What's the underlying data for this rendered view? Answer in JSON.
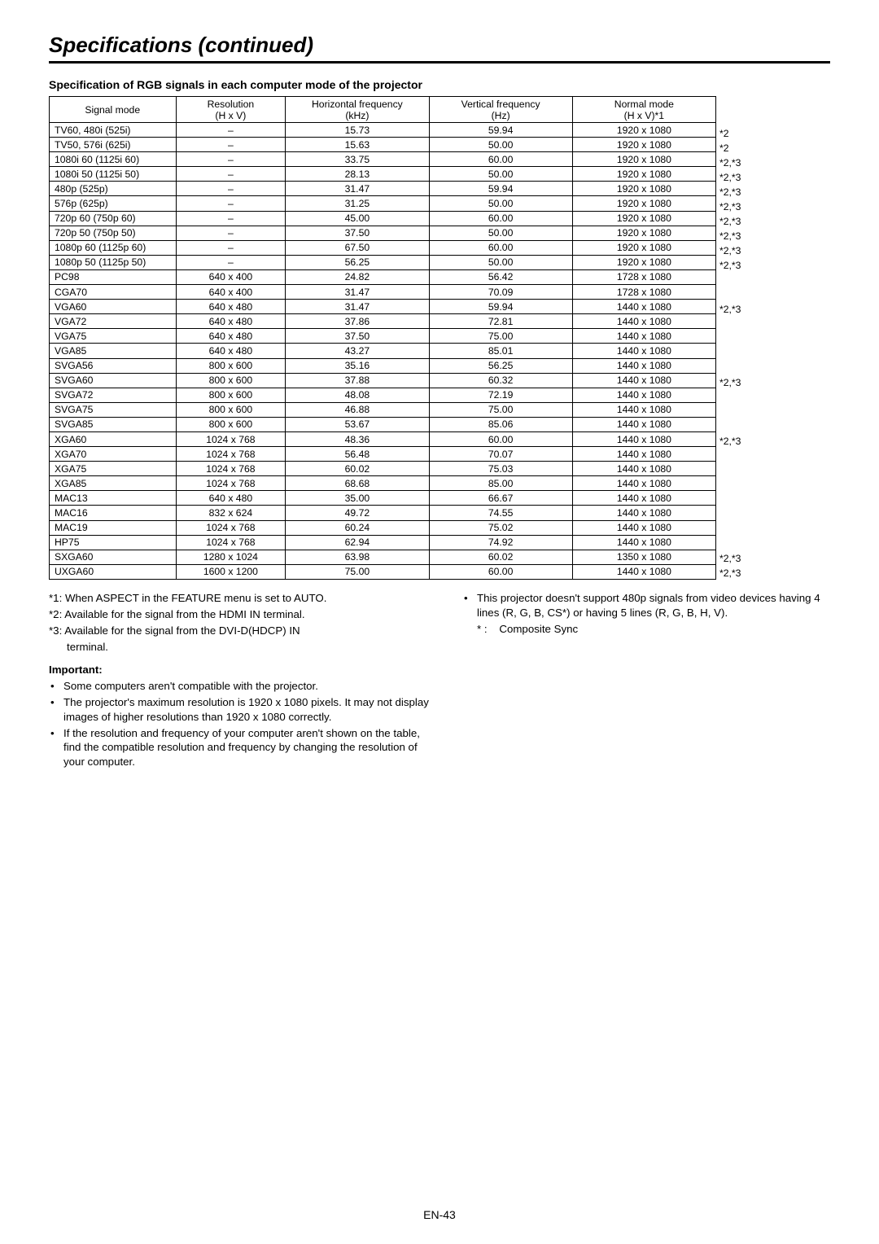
{
  "title": "Specifications (continued)",
  "section_heading": "Specification of RGB signals in each computer mode of the projector",
  "headers": {
    "c1a": "Signal mode",
    "c1b": "",
    "c2a": "Resolution",
    "c2b": "(H x V)",
    "c3a": "Horizontal frequency",
    "c3b": "(kHz)",
    "c4a": "Vertical frequency",
    "c4b": "(Hz)",
    "c5a": "Normal mode",
    "c5b": "(H x V)*1"
  },
  "rows": [
    {
      "mode": "TV60, 480i (525i)",
      "res": "–",
      "hf": "15.73",
      "vf": "59.94",
      "normal": "1920 x 1080",
      "note": "*2"
    },
    {
      "mode": "TV50, 576i (625i)",
      "res": "–",
      "hf": "15.63",
      "vf": "50.00",
      "normal": "1920 x 1080",
      "note": "*2"
    },
    {
      "mode": "1080i 60 (1125i 60)",
      "res": "–",
      "hf": "33.75",
      "vf": "60.00",
      "normal": "1920 x 1080",
      "note": "*2,*3"
    },
    {
      "mode": "1080i 50 (1125i 50)",
      "res": "–",
      "hf": "28.13",
      "vf": "50.00",
      "normal": "1920 x 1080",
      "note": "*2,*3"
    },
    {
      "mode": "480p (525p)",
      "res": "–",
      "hf": "31.47",
      "vf": "59.94",
      "normal": "1920 x 1080",
      "note": "*2,*3"
    },
    {
      "mode": "576p (625p)",
      "res": "–",
      "hf": "31.25",
      "vf": "50.00",
      "normal": "1920 x 1080",
      "note": "*2,*3"
    },
    {
      "mode": "720p 60 (750p 60)",
      "res": "–",
      "hf": "45.00",
      "vf": "60.00",
      "normal": "1920 x 1080",
      "note": "*2,*3"
    },
    {
      "mode": "720p 50 (750p 50)",
      "res": "–",
      "hf": "37.50",
      "vf": "50.00",
      "normal": "1920 x 1080",
      "note": "*2,*3"
    },
    {
      "mode": "1080p 60 (1125p 60)",
      "res": "–",
      "hf": "67.50",
      "vf": "60.00",
      "normal": "1920 x 1080",
      "note": "*2,*3"
    },
    {
      "mode": "1080p 50 (1125p 50)",
      "res": "–",
      "hf": "56.25",
      "vf": "50.00",
      "normal": "1920 x 1080",
      "note": "*2,*3"
    },
    {
      "mode": "PC98",
      "res": "640 x 400",
      "hf": "24.82",
      "vf": "56.42",
      "normal": "1728 x 1080",
      "note": ""
    },
    {
      "mode": "CGA70",
      "res": "640 x 400",
      "hf": "31.47",
      "vf": "70.09",
      "normal": "1728 x 1080",
      "note": ""
    },
    {
      "mode": "VGA60",
      "res": "640 x 480",
      "hf": "31.47",
      "vf": "59.94",
      "normal": "1440 x 1080",
      "note": "*2,*3"
    },
    {
      "mode": "VGA72",
      "res": "640 x 480",
      "hf": "37.86",
      "vf": "72.81",
      "normal": "1440 x 1080",
      "note": ""
    },
    {
      "mode": "VGA75",
      "res": "640 x 480",
      "hf": "37.50",
      "vf": "75.00",
      "normal": "1440 x 1080",
      "note": ""
    },
    {
      "mode": "VGA85",
      "res": "640 x 480",
      "hf": "43.27",
      "vf": "85.01",
      "normal": "1440 x 1080",
      "note": ""
    },
    {
      "mode": "SVGA56",
      "res": "800 x 600",
      "hf": "35.16",
      "vf": "56.25",
      "normal": "1440 x 1080",
      "note": ""
    },
    {
      "mode": "SVGA60",
      "res": "800 x 600",
      "hf": "37.88",
      "vf": "60.32",
      "normal": "1440 x 1080",
      "note": "*2,*3"
    },
    {
      "mode": "SVGA72",
      "res": "800 x 600",
      "hf": "48.08",
      "vf": "72.19",
      "normal": "1440 x 1080",
      "note": ""
    },
    {
      "mode": "SVGA75",
      "res": "800 x 600",
      "hf": "46.88",
      "vf": "75.00",
      "normal": "1440 x 1080",
      "note": ""
    },
    {
      "mode": "SVGA85",
      "res": "800 x 600",
      "hf": "53.67",
      "vf": "85.06",
      "normal": "1440 x 1080",
      "note": ""
    },
    {
      "mode": "XGA60",
      "res": "1024 x 768",
      "hf": "48.36",
      "vf": "60.00",
      "normal": "1440 x 1080",
      "note": "*2,*3"
    },
    {
      "mode": "XGA70",
      "res": "1024 x 768",
      "hf": "56.48",
      "vf": "70.07",
      "normal": "1440 x 1080",
      "note": ""
    },
    {
      "mode": "XGA75",
      "res": "1024 x 768",
      "hf": "60.02",
      "vf": "75.03",
      "normal": "1440 x 1080",
      "note": ""
    },
    {
      "mode": "XGA85",
      "res": "1024 x 768",
      "hf": "68.68",
      "vf": "85.00",
      "normal": "1440 x 1080",
      "note": ""
    },
    {
      "mode": "MAC13",
      "res": "640 x 480",
      "hf": "35.00",
      "vf": "66.67",
      "normal": "1440 x 1080",
      "note": ""
    },
    {
      "mode": "MAC16",
      "res": "832 x 624",
      "hf": "49.72",
      "vf": "74.55",
      "normal": "1440 x 1080",
      "note": ""
    },
    {
      "mode": "MAC19",
      "res": "1024 x 768",
      "hf": "60.24",
      "vf": "75.02",
      "normal": "1440 x 1080",
      "note": ""
    },
    {
      "mode": "HP75",
      "res": "1024 x 768",
      "hf": "62.94",
      "vf": "74.92",
      "normal": "1440 x 1080",
      "note": ""
    },
    {
      "mode": "SXGA60",
      "res": "1280 x 1024",
      "hf": "63.98",
      "vf": "60.02",
      "normal": "1350 x 1080",
      "note": "*2,*3"
    },
    {
      "mode": "UXGA60",
      "res": "1600 x 1200",
      "hf": "75.00",
      "vf": "60.00",
      "normal": "1440 x 1080",
      "note": "*2,*3"
    }
  ],
  "footnotes_left": {
    "n1": "*1: When ASPECT in the FEATURE menu is set to AUTO.",
    "n2": "*2: Available for the signal from the HDMI IN terminal.",
    "n3a": "*3: Available for the signal from the DVI-D(HDCP) IN",
    "n3b": "terminal."
  },
  "important_heading": "Important:",
  "important_items": [
    "Some computers aren't compatible with the projector.",
    "The projector's maximum resolution is 1920 x 1080 pixels. It may not display images of higher resolutions than 1920 x 1080 correctly.",
    "If the resolution and frequency of your computer aren't shown on the table, find the compatible resolution and frequency by changing the resolution of your computer."
  ],
  "footnotes_right": {
    "bullet": "This projector doesn't support 480p signals from video devices having 4 lines (R, G, B, CS*) or having 5 lines (R, G, B, H, V).",
    "cs_label": "* :",
    "cs_text": "Composite Sync"
  },
  "page_number": "EN-43"
}
